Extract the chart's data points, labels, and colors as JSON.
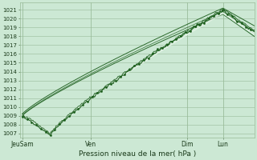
{
  "xlabel": "Pression niveau de la mer( hPa )",
  "ylim": [
    1006.5,
    1021.8
  ],
  "yticks": [
    1007,
    1008,
    1009,
    1010,
    1011,
    1012,
    1013,
    1014,
    1015,
    1016,
    1017,
    1018,
    1019,
    1020,
    1021
  ],
  "x_tick_labels": [
    "JeuSam",
    "Ven",
    "Dim",
    "Lun"
  ],
  "x_tick_positions": [
    0.0,
    0.295,
    0.71,
    0.865
  ],
  "background_color": "#cce8d4",
  "plot_bg_color": "#cce8d4",
  "grid_color": "#99bb99",
  "line_color": "#1a5c1a",
  "white_color": "#e8f5ea",
  "n_points": 200
}
